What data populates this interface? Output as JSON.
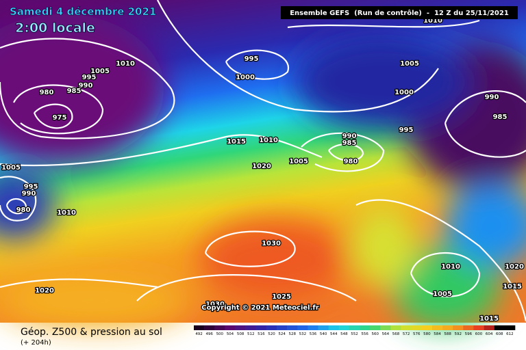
{
  "header": {
    "date": "Samedi 4 décembre 2021",
    "time": "2:00 locale",
    "run": "Ensemble GEFS  (Run de contrôle)  -  12 Z du 25/11/2021"
  },
  "isobar_labels": [
    "1010",
    "1010",
    "1005",
    "995",
    "990",
    "985",
    "980",
    "975",
    "995",
    "1000",
    "1005",
    "1000",
    "990",
    "985",
    "995",
    "1015",
    "1010",
    "1005",
    "990",
    "985",
    "980",
    "1020",
    "1005",
    "995",
    "990",
    "980",
    "1010",
    "1030",
    "1020",
    "1025",
    "1010",
    "1020",
    "1015",
    "1005",
    "1015",
    "1030"
  ],
  "copyright": "Copyright © 2021 Meteociel.fr",
  "caption": {
    "title": "Géop. Z500 & pression au sol",
    "lead": "(+ 204h)"
  },
  "legend": {
    "values": [
      492,
      496,
      500,
      504,
      508,
      512,
      516,
      520,
      524,
      528,
      532,
      536,
      540,
      544,
      548,
      552,
      556,
      560,
      564,
      568,
      572,
      576,
      580,
      584,
      588,
      592,
      596,
      600,
      604,
      608,
      612
    ]
  }
}
